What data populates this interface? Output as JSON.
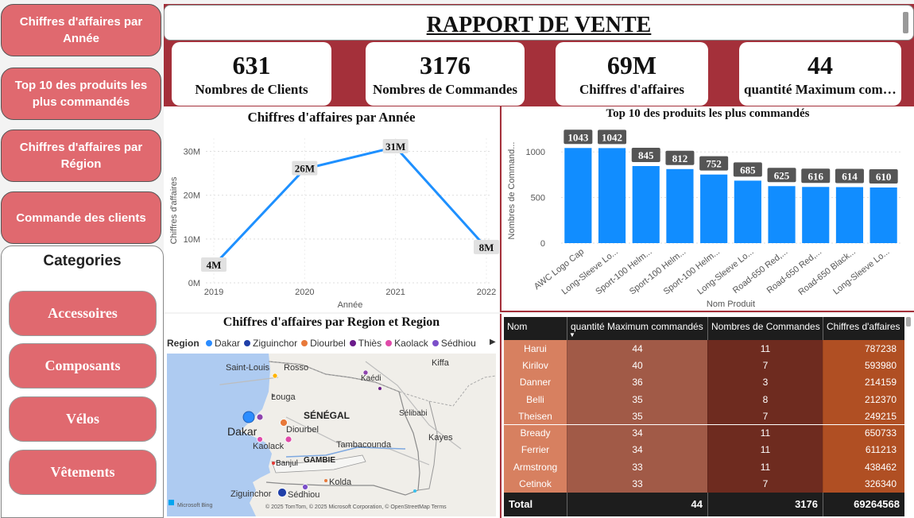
{
  "nav": {
    "items": [
      {
        "label": "Chiffres d'affaires par Année"
      },
      {
        "label": "Top 10 des produits les plus commandés"
      },
      {
        "label": "Chiffres d'affaires par Région"
      },
      {
        "label": "Commande des clients"
      }
    ]
  },
  "categories": {
    "title": "Categories",
    "items": [
      {
        "label": "Accessoires"
      },
      {
        "label": "Composants"
      },
      {
        "label": "Vélos"
      },
      {
        "label": "Vêtements"
      }
    ]
  },
  "header": {
    "title": "RAPPORT DE VENTE"
  },
  "kpis": [
    {
      "value": "631",
      "label": "Nombres de Clients"
    },
    {
      "value": "3176",
      "label": "Nombres de Commandes"
    },
    {
      "value": "69M",
      "label": "Chiffres d'affaires"
    },
    {
      "value": "44",
      "label": "quantité Maximum commandés"
    }
  ],
  "colors": {
    "accent": "#a4303a",
    "button": "#e0696f",
    "series": "#1e90ff",
    "bar": "#118dff"
  },
  "chart_data": [
    {
      "type": "line",
      "title": "Chiffres d'affaires par Année",
      "xlabel": "Année",
      "ylabel": "Chiffres d'affaires",
      "x": [
        "2019",
        "2020",
        "2021",
        "2022"
      ],
      "values": [
        4,
        26,
        31,
        8
      ],
      "data_labels": [
        "4M",
        "26M",
        "31M",
        "8M"
      ],
      "yticks": [
        "0M",
        "10M",
        "20M",
        "30M"
      ],
      "ylim": [
        0,
        33
      ]
    },
    {
      "type": "bar",
      "title": "Top 10 des produits les plus commandés",
      "xlabel": "Nom Produit",
      "ylabel": "Nombres de Command...",
      "categories": [
        "AWC Logo Cap",
        "Long-Sleeve Lo...",
        "Sport-100 Helm...",
        "Sport-100 Helm...",
        "Sport-100 Helm...",
        "Long-Sleeve Lo...",
        "Road-650 Red,...",
        "Road-650 Red,...",
        "Road-650 Black...",
        "Long-Sleeve Lo..."
      ],
      "values": [
        1043,
        1042,
        845,
        812,
        752,
        685,
        625,
        616,
        614,
        610
      ],
      "yticks": [
        "0",
        "500",
        "1000"
      ],
      "ylim": [
        0,
        1150
      ]
    }
  ],
  "map": {
    "title": "Chiffres d'affaires par Region et Region",
    "legend_title": "Region",
    "legend": [
      {
        "name": "Dakar",
        "color": "#2b8cff"
      },
      {
        "name": "Ziguinchor",
        "color": "#1f3fa8"
      },
      {
        "name": "Diourbel",
        "color": "#e8793a"
      },
      {
        "name": "Thiès",
        "color": "#6a1b8a"
      },
      {
        "name": "Kaolack",
        "color": "#e04aa9"
      },
      {
        "name": "Sédhiou",
        "color": "#7b4fc9"
      }
    ],
    "places": [
      "Saint-Louis",
      "Rosso",
      "Kiffa",
      "Kaédi",
      "Louga",
      "SÉNÉGAL",
      "Sélibabi",
      "Dakar",
      "Diourbel",
      "Kayes",
      "Kaolack",
      "Tambacounda",
      "Banjul",
      "GAMBIE",
      "Ziguinchor",
      "Kolda",
      "Sédhiou"
    ],
    "credit": "Microsoft Bing",
    "copyright": "© 2025 TomTom, © 2025 Microsoft Corporation, © OpenStreetMap  Terms"
  },
  "table": {
    "columns": [
      "Nom",
      "quantité Maximum commandés",
      "Nombres de Commandes",
      "Chiffres d'affaires"
    ],
    "rows": [
      [
        "Harui",
        "44",
        "11",
        "787238"
      ],
      [
        "Kirilov",
        "40",
        "7",
        "593980"
      ],
      [
        "Danner",
        "36",
        "3",
        "214159"
      ],
      [
        "Belli",
        "35",
        "8",
        "212370"
      ],
      [
        "Theisen",
        "35",
        "7",
        "249215"
      ],
      [
        "Bready",
        "34",
        "11",
        "650733"
      ],
      [
        "Ferrier",
        "34",
        "11",
        "611213"
      ],
      [
        "Armstrong",
        "33",
        "11",
        "438462"
      ],
      [
        "Cetinok",
        "33",
        "7",
        "326340"
      ]
    ],
    "total": [
      "Total",
      "44",
      "3176",
      "69264568"
    ]
  }
}
